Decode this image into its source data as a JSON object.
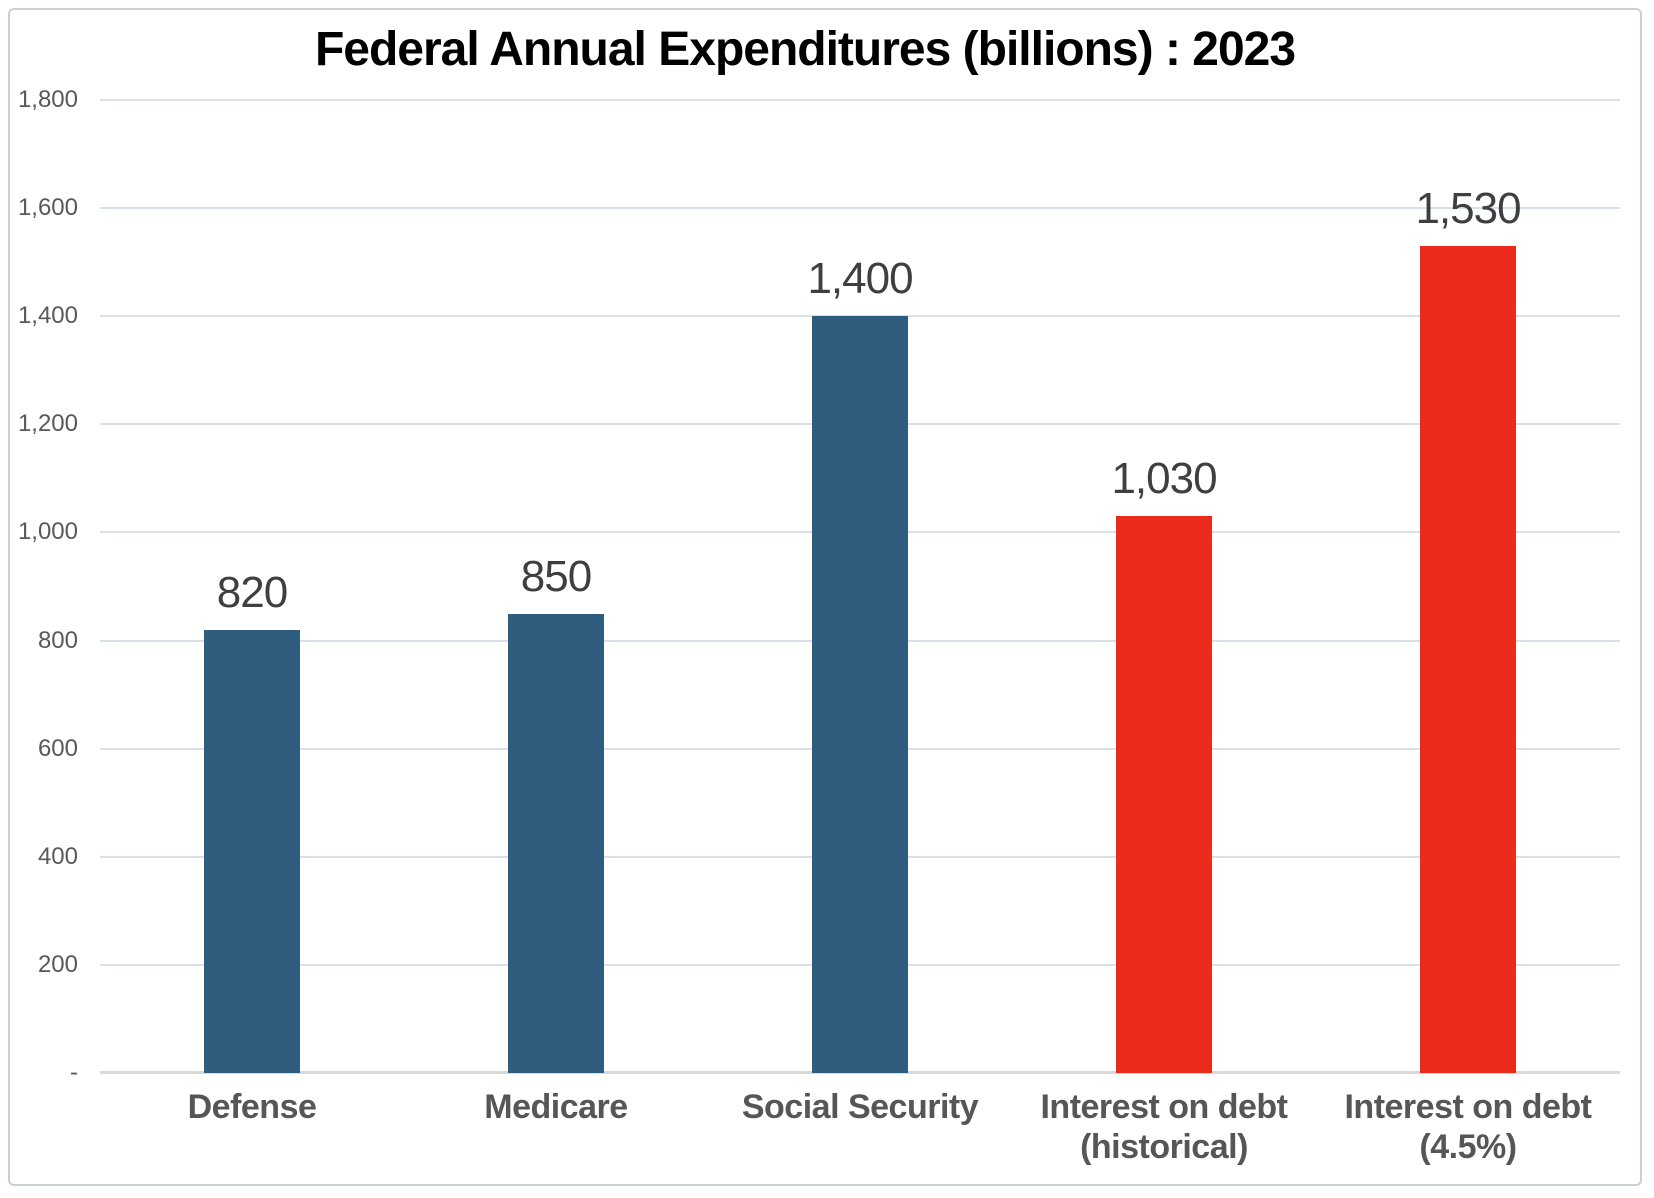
{
  "page": {
    "background": "#FFFFFF",
    "frame_border_color": "#C9CFD5"
  },
  "chart_data": {
    "type": "bar",
    "title": "Federal Annual Expenditures (billions) : 2023",
    "xlabel": "",
    "ylabel": "",
    "ylim": [
      0,
      1800
    ],
    "grid": true,
    "legend": "none",
    "categories": [
      "Defense",
      "Medicare",
      "Social Security",
      "Interest on debt\n(historical)",
      "Interest on debt\n(4.5%)"
    ],
    "values": [
      820,
      850,
      1400,
      1030,
      1530
    ],
    "value_labels": [
      "820",
      "850",
      "1,400",
      "1,030",
      "1,530"
    ],
    "bar_colors": [
      "#2E5D7D",
      "#2E5D7D",
      "#2E5D7D",
      "#EC2A1C",
      "#EC2A1C"
    ],
    "yticks": [
      {
        "value": 0,
        "label": "-"
      },
      {
        "value": 200,
        "label": "200"
      },
      {
        "value": 400,
        "label": "400"
      },
      {
        "value": 600,
        "label": "600"
      },
      {
        "value": 800,
        "label": "800"
      },
      {
        "value": 1000,
        "label": "1,000"
      },
      {
        "value": 1200,
        "label": "1,200"
      },
      {
        "value": 1400,
        "label": "1,400"
      },
      {
        "value": 1600,
        "label": "1,600"
      },
      {
        "value": 1800,
        "label": "1,800"
      }
    ],
    "colors": {
      "blue_series": "#2E5D7D",
      "red_series": "#EC2A1C",
      "gridline": "#D9E2EB",
      "axis_line": "#D9D9D9",
      "tick_label": "#595959",
      "value_label": "#3F3F3F",
      "category_label": "#565656",
      "title": "#000000"
    }
  }
}
